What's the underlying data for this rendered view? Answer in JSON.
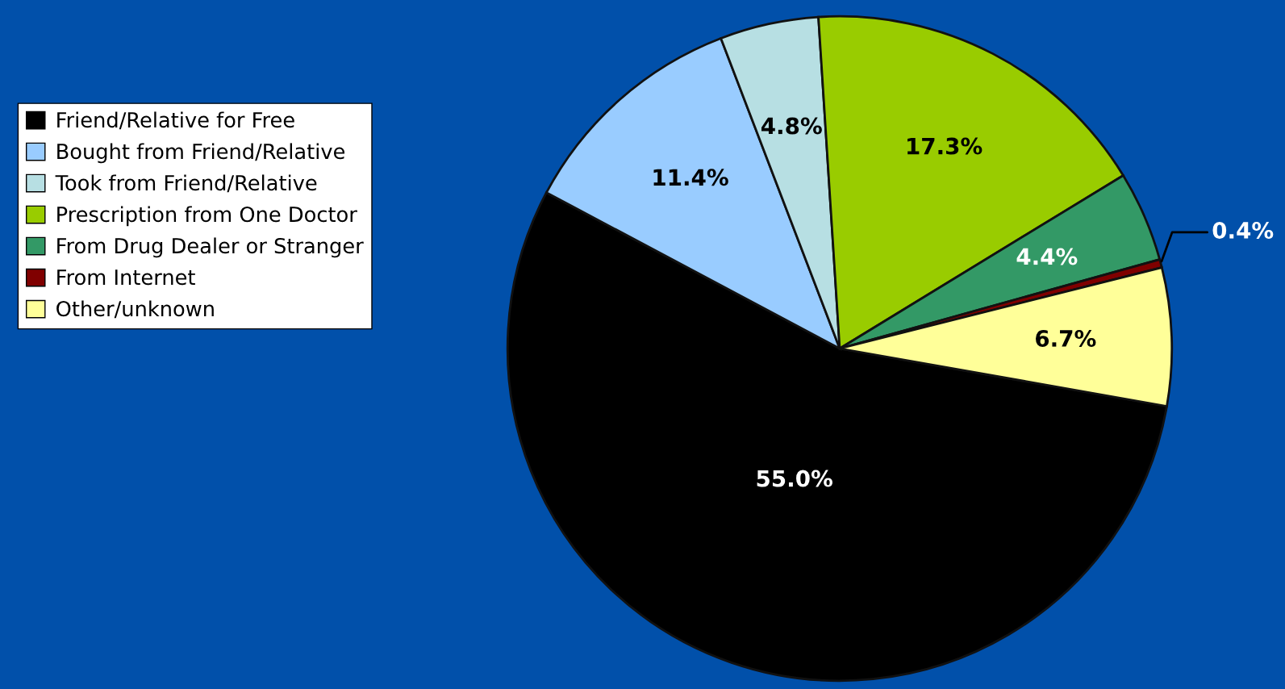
{
  "chart_data": {
    "type": "pie",
    "categories": [
      "Friend/Relative for Free",
      "Bought from Friend/Relative",
      "Took from Friend/Relative",
      "Prescription from One Doctor",
      "From Drug Dealer or Stranger",
      "From Internet",
      "Other/unknown"
    ],
    "values": [
      55.0,
      11.4,
      4.8,
      17.3,
      4.4,
      0.4,
      6.7
    ],
    "colors": [
      "#000000",
      "#99ccff",
      "#b7dfe3",
      "#99cc00",
      "#339966",
      "#800000",
      "#ffff99"
    ],
    "value_labels": [
      "55.0%",
      "11.4%",
      "4.8%",
      "17.3%",
      "4.4%",
      "0.4%",
      "6.7%"
    ],
    "legend": "left"
  }
}
